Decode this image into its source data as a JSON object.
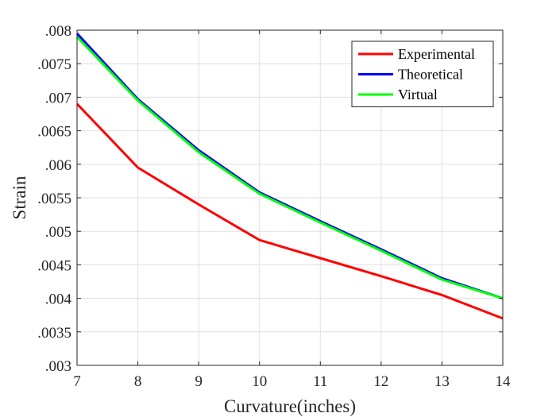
{
  "chart_data": {
    "type": "line",
    "title": "",
    "xlabel": "Curvature(inches)",
    "ylabel": "Strain",
    "x": [
      7,
      8,
      9,
      10,
      11,
      12,
      13,
      14
    ],
    "xlim": [
      7,
      14
    ],
    "ylim": [
      0.003,
      0.008
    ],
    "xticks": [
      7,
      8,
      9,
      10,
      11,
      12,
      13,
      14
    ],
    "xtick_labels": [
      "7",
      "8",
      "9",
      "10",
      "11",
      "12",
      "13",
      "14"
    ],
    "yticks": [
      0.003,
      0.0035,
      0.004,
      0.0045,
      0.005,
      0.0055,
      0.006,
      0.0065,
      0.007,
      0.0075,
      0.008
    ],
    "ytick_labels": [
      ".003",
      ".0035",
      ".004",
      ".0045",
      ".005",
      ".0055",
      ".006",
      ".0065",
      ".007",
      ".0075",
      ".008"
    ],
    "grid": true,
    "legend_position": "top-right",
    "series": [
      {
        "name": "Experimental",
        "color": "#ff0000",
        "values": [
          0.0069,
          0.00595,
          0.0054,
          0.00487,
          0.0046,
          0.00433,
          0.00405,
          0.0037
        ]
      },
      {
        "name": "Theoretical",
        "color": "#0000ff",
        "values": [
          0.00795,
          0.00697,
          0.00621,
          0.00558,
          0.00515,
          0.00473,
          0.0043,
          0.004
        ]
      },
      {
        "name": "Virtual",
        "color": "#00ff00",
        "values": [
          0.0079,
          0.00695,
          0.00618,
          0.00556,
          0.00513,
          0.00471,
          0.00428,
          0.004
        ]
      }
    ]
  }
}
